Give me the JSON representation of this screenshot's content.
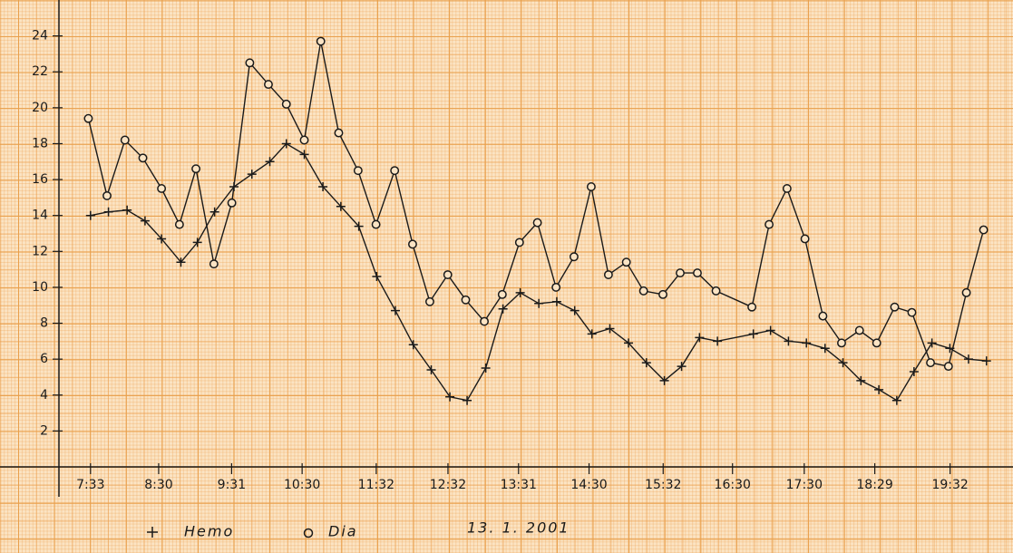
{
  "chart_data": {
    "type": "line",
    "subtitle": "13. 1. 2001",
    "xlim": [
      7.11,
      20.41
    ],
    "xticks": [
      {
        "value": 7.55,
        "label": "7:33"
      },
      {
        "value": 8.5,
        "label": "8:30"
      },
      {
        "value": 9.517,
        "label": "9:31"
      },
      {
        "value": 10.5,
        "label": "10:30"
      },
      {
        "value": 11.533,
        "label": "11:32"
      },
      {
        "value": 12.533,
        "label": "12:32"
      },
      {
        "value": 13.517,
        "label": "13:31"
      },
      {
        "value": 14.5,
        "label": "14:30"
      },
      {
        "value": 15.533,
        "label": "15:32"
      },
      {
        "value": 16.5,
        "label": "16:30"
      },
      {
        "value": 17.5,
        "label": "17:30"
      },
      {
        "value": 18.483,
        "label": "18:29"
      },
      {
        "value": 19.533,
        "label": "19:32"
      }
    ],
    "ylim": [
      0,
      26
    ],
    "yticks": [
      2,
      4,
      6,
      8,
      10,
      12,
      14,
      16,
      18,
      20,
      22,
      24
    ],
    "series": [
      {
        "name": "Hemo",
        "marker": "plus",
        "color": "#1a1a1a",
        "x": [
          7.55,
          7.8,
          8.06,
          8.31,
          8.54,
          8.81,
          9.04,
          9.28,
          9.55,
          9.8,
          10.05,
          10.28,
          10.53,
          10.79,
          11.04,
          11.29,
          11.54,
          11.8,
          12.05,
          12.3,
          12.56,
          12.8,
          13.06,
          13.3,
          13.54,
          13.8,
          14.05,
          14.3,
          14.54,
          14.79,
          15.05,
          15.3,
          15.55,
          15.79,
          16.04,
          16.29,
          16.79,
          17.03,
          17.28,
          17.53,
          17.79,
          18.04,
          18.29,
          18.54,
          18.79,
          19.03,
          19.28,
          19.53,
          19.79,
          20.04
        ],
        "values": [
          14.0,
          14.2,
          14.3,
          13.7,
          12.7,
          11.4,
          12.5,
          14.2,
          15.6,
          16.3,
          17.0,
          18.0,
          17.4,
          15.6,
          14.5,
          13.4,
          10.6,
          8.7,
          6.8,
          5.4,
          3.9,
          3.7,
          5.5,
          8.8,
          9.7,
          9.1,
          9.2,
          8.7,
          7.4,
          7.7,
          6.9,
          5.8,
          4.8,
          5.6,
          7.2,
          7.0,
          7.4,
          7.6,
          7.0,
          6.9,
          6.6,
          5.8,
          4.8,
          4.3,
          3.7,
          5.3,
          6.9,
          6.6,
          6.0,
          5.9
        ]
      },
      {
        "name": "Dia",
        "marker": "circle",
        "color": "#1a1a1a",
        "x": [
          7.52,
          7.78,
          8.03,
          8.28,
          8.54,
          8.79,
          9.02,
          9.27,
          9.52,
          9.77,
          10.03,
          10.28,
          10.53,
          10.76,
          11.01,
          11.28,
          11.53,
          11.79,
          12.04,
          12.28,
          12.53,
          12.78,
          13.04,
          13.29,
          13.53,
          13.78,
          14.04,
          14.29,
          14.53,
          14.77,
          15.02,
          15.26,
          15.53,
          15.77,
          16.01,
          16.27,
          16.77,
          17.01,
          17.26,
          17.51,
          17.76,
          18.02,
          18.27,
          18.51,
          18.76,
          19.0,
          19.26,
          19.51,
          19.76,
          20.0
        ],
        "values": [
          19.4,
          15.1,
          18.2,
          17.2,
          15.5,
          13.5,
          16.6,
          11.3,
          14.7,
          22.5,
          21.3,
          20.2,
          18.2,
          23.7,
          18.6,
          16.5,
          13.5,
          16.5,
          12.4,
          9.2,
          10.7,
          9.3,
          8.1,
          9.6,
          12.5,
          13.6,
          10.0,
          11.7,
          15.6,
          10.7,
          11.4,
          9.8,
          9.6,
          10.8,
          10.8,
          9.8,
          8.9,
          13.5,
          15.5,
          12.7,
          8.4,
          6.9,
          7.6,
          6.9,
          8.9,
          8.6,
          5.8,
          5.6,
          9.7,
          13.2
        ]
      }
    ]
  }
}
